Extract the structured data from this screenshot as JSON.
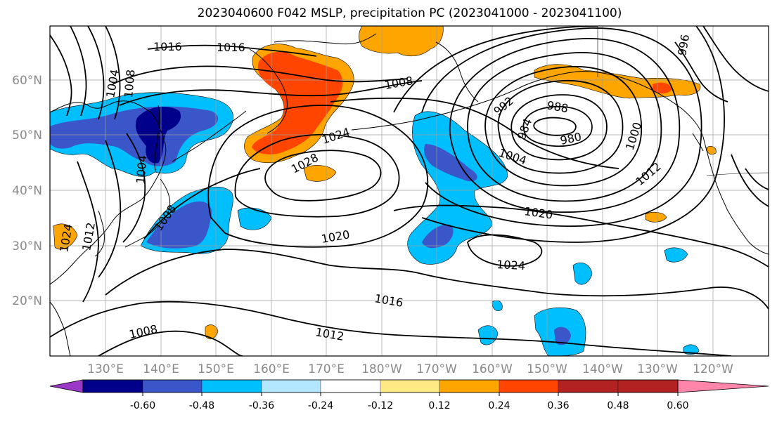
{
  "title": "2023040600 F042 MSLP, precipitation PC (2023041000 - 2023041100)",
  "colors": {
    "frame": "#000000",
    "grid": "#9e9e9e",
    "tick_label": "#8a8a8a",
    "contour": "#000000",
    "coast": "#000000"
  },
  "lat_labels": [
    "60°N",
    "50°N",
    "40°N",
    "30°N",
    "20°N"
  ],
  "lon_labels": [
    "130°E",
    "140°E",
    "150°E",
    "160°E",
    "170°E",
    "180°W",
    "170°W",
    "160°W",
    "150°W",
    "140°W",
    "130°W",
    "120°W"
  ],
  "colorbar": {
    "colors": [
      "#9a38c8",
      "#00008b",
      "#3a56c9",
      "#00bfff",
      "#b3e6ff",
      "#ffffff",
      "#ffe985",
      "#ffa500",
      "#ff4500",
      "#b22222",
      "#ff86aa"
    ],
    "tick_labels": [
      "-0.60",
      "-0.48",
      "-0.36",
      "-0.24",
      "-0.12",
      "0.12",
      "0.24",
      "0.36",
      "0.48",
      "0.60"
    ]
  },
  "isobar_labels": {
    "h1016a": "1016",
    "h1016b": "1016",
    "h1008a": "1008",
    "h1024a": "1024",
    "h1028": "1028",
    "h1004a": "1004",
    "h1008b": "1008",
    "h1020a": "1020",
    "h1020b": "1020",
    "h1024b": "1024",
    "h1016c": "1016",
    "h1012a": "1012",
    "h1008c": "1008",
    "h988": "988",
    "h984": "984",
    "h980": "980",
    "h1000": "1000",
    "h1012b": "1012",
    "h992": "992",
    "h996": "996",
    "h1024c": "1024",
    "h1012c": "1012",
    "h1004b": "1004",
    "h1004c": "1004",
    "h1008d": "1008"
  }
}
